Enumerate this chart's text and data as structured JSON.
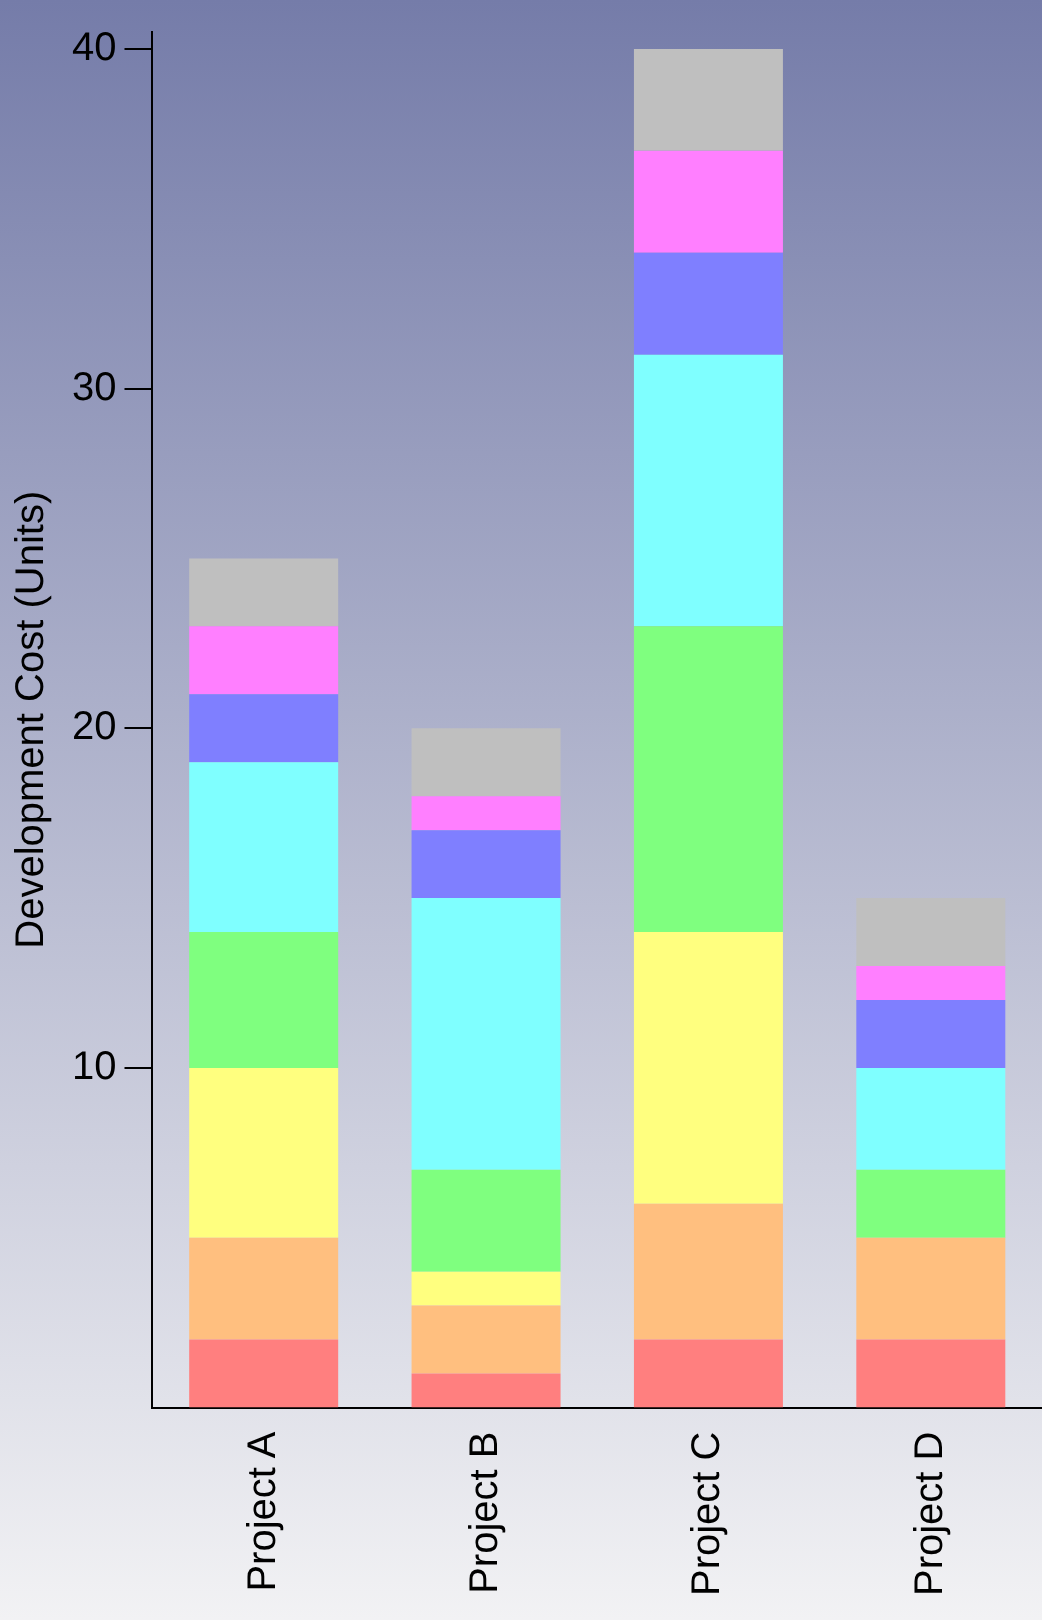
{
  "chart_data": {
    "type": "bar",
    "ylabel": "Development Cost (Units)",
    "categories": [
      "Project A",
      "Project B",
      "Project C",
      "Project D"
    ],
    "stacked": true,
    "grid": false,
    "legend": false,
    "ylim": [
      0,
      40.5
    ],
    "yticks": [
      10,
      20,
      30,
      40
    ],
    "series": [
      {
        "color": "#ff7f7f",
        "values": [
          2,
          1,
          2,
          2
        ]
      },
      {
        "color": "#ffbf7f",
        "values": [
          3,
          2,
          4,
          3
        ]
      },
      {
        "color": "#ffff7f",
        "values": [
          5,
          1,
          8,
          0
        ]
      },
      {
        "color": "#7fff7f",
        "values": [
          4,
          3,
          9,
          2
        ]
      },
      {
        "color": "#7fffff",
        "values": [
          5,
          8,
          8,
          3
        ]
      },
      {
        "color": "#7f7fff",
        "values": [
          2,
          2,
          3,
          2
        ]
      },
      {
        "color": "#ff7fff",
        "values": [
          2,
          1,
          3,
          1
        ]
      },
      {
        "color": "#bfbfbf",
        "values": [
          2,
          2,
          3,
          2
        ]
      }
    ]
  }
}
